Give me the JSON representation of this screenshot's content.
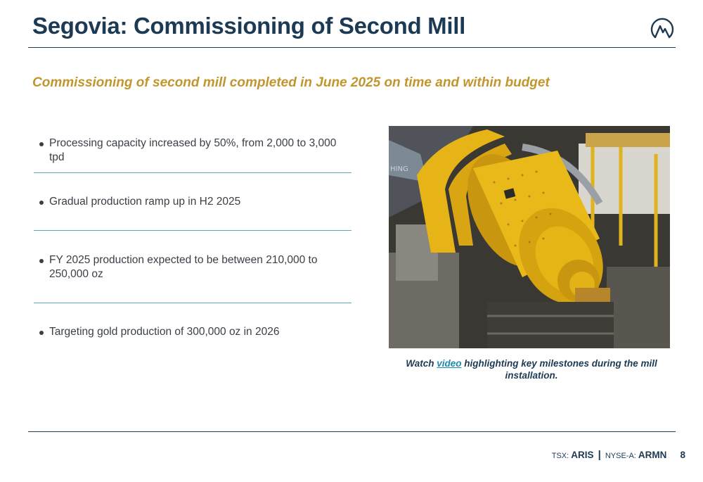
{
  "header": {
    "title": "Segovia: Commissioning of Second Mill",
    "logo_icon": "aris-mountain-logo-icon"
  },
  "subtitle": "Commissioning of second mill completed in June 2025 on time and within budget",
  "bullets": [
    "Processing capacity increased by 50%, from 2,000 to 3,000 tpd",
    "Gradual production ramp up in H2 2025",
    "FY 2025 production expected to be between 210,000 to 250,000 oz",
    "Targeting gold production of 300,000 oz in 2026"
  ],
  "photo": {
    "icon": "ball-mill-photo",
    "visible_text": "HING"
  },
  "caption": {
    "prefix": "Watch ",
    "link": "video",
    "suffix": " highlighting key milestones during the mill installation."
  },
  "footer": {
    "tsx_label": "TSX:",
    "tsx_ticker": "ARIS",
    "separator": "|",
    "nyse_label": "NYSE-A:",
    "nyse_ticker": "ARMN",
    "page_number": "8"
  },
  "colors": {
    "navy": "#1d3a54",
    "gold": "#c2962e",
    "teal": "#5fa8b8",
    "link": "#1f8ab0",
    "mill_yellow": "#e7b417"
  }
}
